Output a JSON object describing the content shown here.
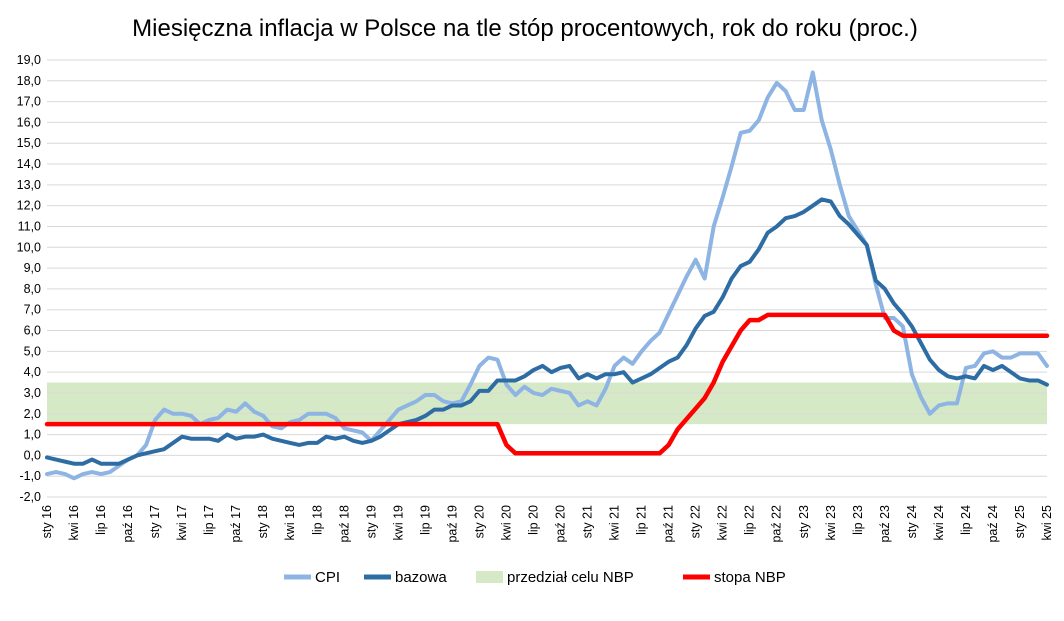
{
  "chart_data": {
    "type": "line",
    "title": "Miesięczna inflacja w Polsce na tle stóp procentowych, rok do roku (proc.)",
    "xlabel": "",
    "ylabel": "",
    "ylim": [
      -2,
      19
    ],
    "yticks": [
      "-2,0",
      "-1,0",
      "0,0",
      "1,0",
      "2,0",
      "3,0",
      "4,0",
      "5,0",
      "6,0",
      "7,0",
      "8,0",
      "9,0",
      "10,0",
      "11,0",
      "12,0",
      "13,0",
      "14,0",
      "15,0",
      "16,0",
      "17,0",
      "18,0",
      "19,0"
    ],
    "grid": true,
    "legend": "bottom",
    "x_tick_labels": [
      "sty 16",
      "kwi 16",
      "lip 16",
      "paź 16",
      "sty 17",
      "kwi 17",
      "lip 17",
      "paź 17",
      "sty 18",
      "kwi 18",
      "lip 18",
      "paź 18",
      "sty 19",
      "kwi 19",
      "lip 19",
      "paź 19",
      "sty 20",
      "kwi 20",
      "lip 20",
      "paź 20",
      "sty 21",
      "kwi 21",
      "lip 21",
      "paź 21",
      "sty 22",
      "kwi 22",
      "lip 22",
      "paź 22",
      "sty 23",
      "kwi 23",
      "lip 23",
      "paź 23",
      "sty 24",
      "kwi 24",
      "lip 24",
      "paź 24",
      "sty 25",
      "kwi 25"
    ],
    "target_band": {
      "name": "przedział celu NBP",
      "low": 1.5,
      "high": 3.5,
      "color": "#d6e9c6"
    },
    "series": [
      {
        "name": "CPI",
        "color": "#8db4e2",
        "width": 4,
        "values": [
          -0.9,
          -0.8,
          -0.9,
          -1.1,
          -0.9,
          -0.8,
          -0.9,
          -0.8,
          -0.5,
          -0.2,
          0.0,
          0.5,
          1.7,
          2.2,
          2.0,
          2.0,
          1.9,
          1.5,
          1.7,
          1.8,
          2.2,
          2.1,
          2.5,
          2.1,
          1.9,
          1.4,
          1.3,
          1.6,
          1.7,
          2.0,
          2.0,
          2.0,
          1.8,
          1.3,
          1.2,
          1.1,
          0.7,
          1.2,
          1.7,
          2.2,
          2.4,
          2.6,
          2.9,
          2.9,
          2.6,
          2.5,
          2.6,
          3.4,
          4.3,
          4.7,
          4.6,
          3.4,
          2.9,
          3.3,
          3.0,
          2.9,
          3.2,
          3.1,
          3.0,
          2.4,
          2.6,
          2.4,
          3.2,
          4.3,
          4.7,
          4.4,
          5.0,
          5.5,
          5.9,
          6.8,
          7.7,
          8.6,
          9.4,
          8.5,
          11.0,
          12.4,
          13.9,
          15.5,
          15.6,
          16.1,
          17.2,
          17.9,
          17.5,
          16.6,
          16.6,
          18.4,
          16.1,
          14.7,
          13.0,
          11.5,
          10.8,
          10.1,
          8.2,
          6.6,
          6.6,
          6.2,
          3.9,
          2.8,
          2.0,
          2.4,
          2.5,
          2.5,
          4.2,
          4.3,
          4.9,
          5.0,
          4.7,
          4.7,
          4.9,
          4.9,
          4.9,
          4.3
        ]
      },
      {
        "name": "bazowa",
        "color": "#2e6ca4",
        "width": 4,
        "values": [
          -0.1,
          -0.2,
          -0.3,
          -0.4,
          -0.4,
          -0.2,
          -0.4,
          -0.4,
          -0.4,
          -0.2,
          0.0,
          0.1,
          0.2,
          0.3,
          0.6,
          0.9,
          0.8,
          0.8,
          0.8,
          0.7,
          1.0,
          0.8,
          0.9,
          0.9,
          1.0,
          0.8,
          0.7,
          0.6,
          0.5,
          0.6,
          0.6,
          0.9,
          0.8,
          0.9,
          0.7,
          0.6,
          0.7,
          0.9,
          1.2,
          1.5,
          1.6,
          1.7,
          1.9,
          2.2,
          2.2,
          2.4,
          2.4,
          2.6,
          3.1,
          3.1,
          3.6,
          3.6,
          3.6,
          3.8,
          4.1,
          4.3,
          4.0,
          4.2,
          4.3,
          3.7,
          3.9,
          3.7,
          3.9,
          3.9,
          4.0,
          3.5,
          3.7,
          3.9,
          4.2,
          4.5,
          4.7,
          5.3,
          6.1,
          6.7,
          6.9,
          7.6,
          8.5,
          9.1,
          9.3,
          9.9,
          10.7,
          11.0,
          11.4,
          11.5,
          11.7,
          12.0,
          12.3,
          12.2,
          11.5,
          11.1,
          10.6,
          10.1,
          8.4,
          8.0,
          7.3,
          6.8,
          6.2,
          5.4,
          4.6,
          4.1,
          3.8,
          3.7,
          3.8,
          3.7,
          4.3,
          4.1,
          4.3,
          4.0,
          3.7,
          3.6,
          3.6,
          3.4
        ]
      },
      {
        "name": "stopa NBP",
        "color": "#ff0000",
        "width": 4.5,
        "values": [
          1.5,
          1.5,
          1.5,
          1.5,
          1.5,
          1.5,
          1.5,
          1.5,
          1.5,
          1.5,
          1.5,
          1.5,
          1.5,
          1.5,
          1.5,
          1.5,
          1.5,
          1.5,
          1.5,
          1.5,
          1.5,
          1.5,
          1.5,
          1.5,
          1.5,
          1.5,
          1.5,
          1.5,
          1.5,
          1.5,
          1.5,
          1.5,
          1.5,
          1.5,
          1.5,
          1.5,
          1.5,
          1.5,
          1.5,
          1.5,
          1.5,
          1.5,
          1.5,
          1.5,
          1.5,
          1.5,
          1.5,
          1.5,
          1.5,
          1.5,
          1.5,
          0.5,
          0.1,
          0.1,
          0.1,
          0.1,
          0.1,
          0.1,
          0.1,
          0.1,
          0.1,
          0.1,
          0.1,
          0.1,
          0.1,
          0.1,
          0.1,
          0.1,
          0.1,
          0.5,
          1.25,
          1.75,
          2.25,
          2.75,
          3.5,
          4.5,
          5.25,
          6.0,
          6.5,
          6.5,
          6.75,
          6.75,
          6.75,
          6.75,
          6.75,
          6.75,
          6.75,
          6.75,
          6.75,
          6.75,
          6.75,
          6.75,
          6.75,
          6.75,
          6.0,
          5.75,
          5.75,
          5.75,
          5.75,
          5.75,
          5.75,
          5.75,
          5.75,
          5.75,
          5.75,
          5.75,
          5.75,
          5.75,
          5.75,
          5.75,
          5.75,
          5.75
        ]
      }
    ]
  }
}
